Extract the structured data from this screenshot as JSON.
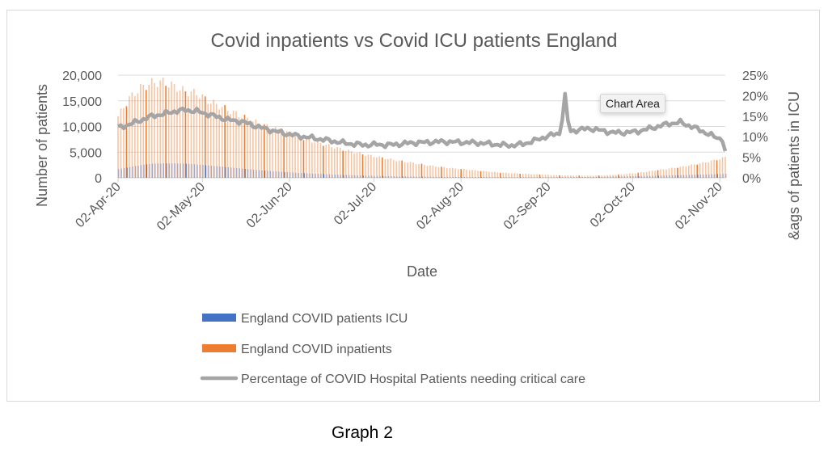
{
  "caption": "Graph 2",
  "tooltip": "Chart Area",
  "chart_data": {
    "type": "bar+line",
    "title": "Covid inpatients vs Covid ICU patients England",
    "xlabel": "Date",
    "ylabel": "Number of patients",
    "y2label": "&ags of patients in ICU",
    "ylim": [
      0,
      20000
    ],
    "y2lim": [
      0,
      0.25
    ],
    "yticks": [
      "0",
      "5,000",
      "10,000",
      "15,000",
      "20,000"
    ],
    "y2ticks": [
      "0%",
      "5%",
      "10%",
      "15%",
      "20%",
      "25%"
    ],
    "xticks": [
      "02-Apr-20",
      "02-May-20",
      "02-Jun-20",
      "02-Jul-20",
      "02-Aug-20",
      "02-Sep-20",
      "02-Oct-20",
      "02-Nov-20"
    ],
    "grid": true,
    "legend_position": "bottom",
    "x_start": "2020-04-02",
    "x_step_days": 4,
    "series": [
      {
        "name": "England COVID patients ICU",
        "type": "bar",
        "color": "#4472c4",
        "values": [
          1700,
          2100,
          2500,
          2750,
          2800,
          2800,
          2750,
          2600,
          2400,
          2200,
          2000,
          1800,
          1600,
          1400,
          1250,
          1100,
          950,
          850,
          750,
          650,
          560,
          480,
          420,
          370,
          320,
          280,
          240,
          210,
          190,
          170,
          160,
          150,
          140,
          130,
          120,
          110,
          110,
          110,
          115,
          120,
          130,
          150,
          170,
          200,
          240,
          280,
          320,
          370,
          420,
          470,
          520,
          580,
          640,
          700,
          760
        ]
      },
      {
        "name": "England COVID inpatients",
        "type": "bar",
        "color": "#ed7d31",
        "values": [
          12000,
          15500,
          17500,
          18500,
          18700,
          17800,
          16800,
          16500,
          15000,
          14000,
          13000,
          12000,
          11000,
          10200,
          9500,
          8700,
          8000,
          7300,
          6700,
          6100,
          5500,
          5000,
          4500,
          4100,
          3700,
          3300,
          3000,
          2600,
          2300,
          2000,
          1800,
          1600,
          1400,
          1200,
          1000,
          900,
          800,
          700,
          600,
          500,
          450,
          420,
          400,
          450,
          550,
          700,
          900,
          1200,
          1500,
          1800,
          2100,
          2500,
          2900,
          3400,
          4000
        ]
      },
      {
        "name": "Percentage of COVID Hospital Patients needing critical care",
        "type": "line",
        "axis": "right",
        "color": "#a5a5a5",
        "values": [
          0.122,
          0.13,
          0.14,
          0.15,
          0.155,
          0.162,
          0.165,
          0.162,
          0.155,
          0.147,
          0.14,
          0.137,
          0.128,
          0.12,
          0.113,
          0.107,
          0.102,
          0.098,
          0.094,
          0.09,
          0.085,
          0.082,
          0.08,
          0.081,
          0.08,
          0.082,
          0.085,
          0.086,
          0.087,
          0.088,
          0.087,
          0.086,
          0.085,
          0.083,
          0.08,
          0.079,
          0.082,
          0.09,
          0.1,
          0.107,
          0.112,
          0.117,
          0.12,
          0.115,
          0.11,
          0.11,
          0.112,
          0.118,
          0.125,
          0.132,
          0.135,
          0.125,
          0.113,
          0.1,
          0.092
        ]
      }
    ]
  }
}
